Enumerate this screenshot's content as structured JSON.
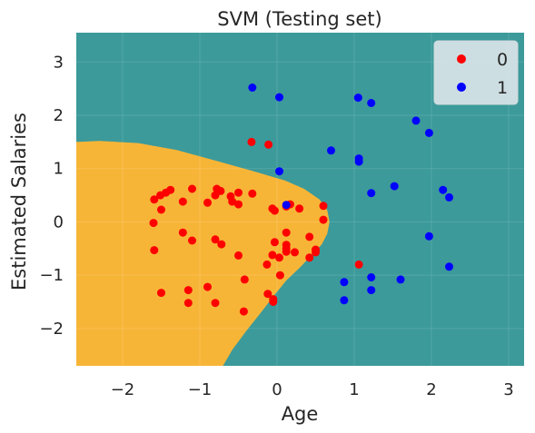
{
  "chart_data": {
    "type": "scatter",
    "title": "SVM (Testing set)",
    "xlabel": "Age",
    "ylabel": "Estimated Salaries",
    "xlim": [
      -2.6,
      3.2
    ],
    "ylim": [
      -2.7,
      3.55
    ],
    "xticks": [
      -2,
      -1,
      0,
      1,
      2,
      3
    ],
    "xtick_labels": [
      "−2",
      "−1",
      "0",
      "1",
      "2",
      "3"
    ],
    "yticks": [
      -2,
      -1,
      0,
      1,
      2,
      3
    ],
    "ytick_labels": [
      "−2",
      "−1",
      "0",
      "1",
      "2",
      "3"
    ],
    "grid": true,
    "legend_position": "top-right",
    "regions": [
      {
        "class": "0",
        "color": "#f7b538"
      },
      {
        "class": "1",
        "color": "#3c9a9a"
      }
    ],
    "series": [
      {
        "name": "0",
        "color": "#ff0000",
        "points": [
          [
            -1.59,
            0.42
          ],
          [
            -1.51,
            0.5
          ],
          [
            -1.44,
            0.55
          ],
          [
            -1.38,
            0.6
          ],
          [
            -1.5,
            0.23
          ],
          [
            -1.6,
            -0.02
          ],
          [
            -1.59,
            -0.53
          ],
          [
            -1.5,
            -1.33
          ],
          [
            -1.22,
            -0.2
          ],
          [
            -1.22,
            0.38
          ],
          [
            -1.1,
            0.62
          ],
          [
            -1.1,
            -0.35
          ],
          [
            -1.15,
            -1.28
          ],
          [
            -1.15,
            -1.52
          ],
          [
            -0.9,
            -1.22
          ],
          [
            -0.9,
            0.36
          ],
          [
            -0.8,
            0.5
          ],
          [
            -0.78,
            0.62
          ],
          [
            -0.73,
            0.58
          ],
          [
            -0.8,
            -0.33
          ],
          [
            -0.72,
            -0.42
          ],
          [
            -0.8,
            -1.52
          ],
          [
            -0.6,
            0.48
          ],
          [
            -0.58,
            0.38
          ],
          [
            -0.5,
            0.33
          ],
          [
            -0.5,
            0.55
          ],
          [
            -0.5,
            -0.63
          ],
          [
            -0.42,
            -1.08
          ],
          [
            -0.43,
            -1.68
          ],
          [
            -0.32,
            0.53
          ],
          [
            -0.33,
            1.5
          ],
          [
            -0.11,
            1.45
          ],
          [
            -0.06,
            0.25
          ],
          [
            -0.03,
            0.21
          ],
          [
            -0.03,
            -0.38
          ],
          [
            -0.06,
            -0.62
          ],
          [
            -0.13,
            -0.8
          ],
          [
            -0.12,
            -1.35
          ],
          [
            -0.05,
            -1.45
          ],
          [
            -0.05,
            -1.5
          ],
          [
            0.03,
            -0.67
          ],
          [
            0.04,
            -1.0
          ],
          [
            0.12,
            0.29
          ],
          [
            0.17,
            0.33
          ],
          [
            0.29,
            0.25
          ],
          [
            0.12,
            -0.2
          ],
          [
            0.12,
            -0.43
          ],
          [
            0.12,
            -0.5
          ],
          [
            0.12,
            -0.56
          ],
          [
            0.23,
            -0.57
          ],
          [
            0.42,
            -0.28
          ],
          [
            0.42,
            -0.67
          ],
          [
            0.5,
            -0.52
          ],
          [
            0.5,
            -0.57
          ],
          [
            0.6,
            0.04
          ],
          [
            0.6,
            0.3
          ],
          [
            1.06,
            -0.8
          ]
        ]
      },
      {
        "name": "1",
        "color": "#0000ff",
        "points": [
          [
            -0.32,
            2.52
          ],
          [
            0.03,
            2.34
          ],
          [
            0.03,
            0.95
          ],
          [
            0.12,
            0.32
          ],
          [
            0.7,
            1.34
          ],
          [
            1.05,
            2.33
          ],
          [
            1.22,
            2.23
          ],
          [
            1.06,
            1.19
          ],
          [
            1.06,
            1.13
          ],
          [
            1.22,
            0.54
          ],
          [
            1.52,
            0.67
          ],
          [
            1.8,
            1.9
          ],
          [
            1.97,
            1.67
          ],
          [
            2.15,
            0.6
          ],
          [
            2.23,
            0.46
          ],
          [
            1.97,
            -0.27
          ],
          [
            2.23,
            -0.84
          ],
          [
            0.87,
            -1.13
          ],
          [
            1.22,
            -1.04
          ],
          [
            1.22,
            -1.28
          ],
          [
            1.6,
            -1.08
          ],
          [
            0.87,
            -1.47
          ]
        ]
      }
    ]
  }
}
